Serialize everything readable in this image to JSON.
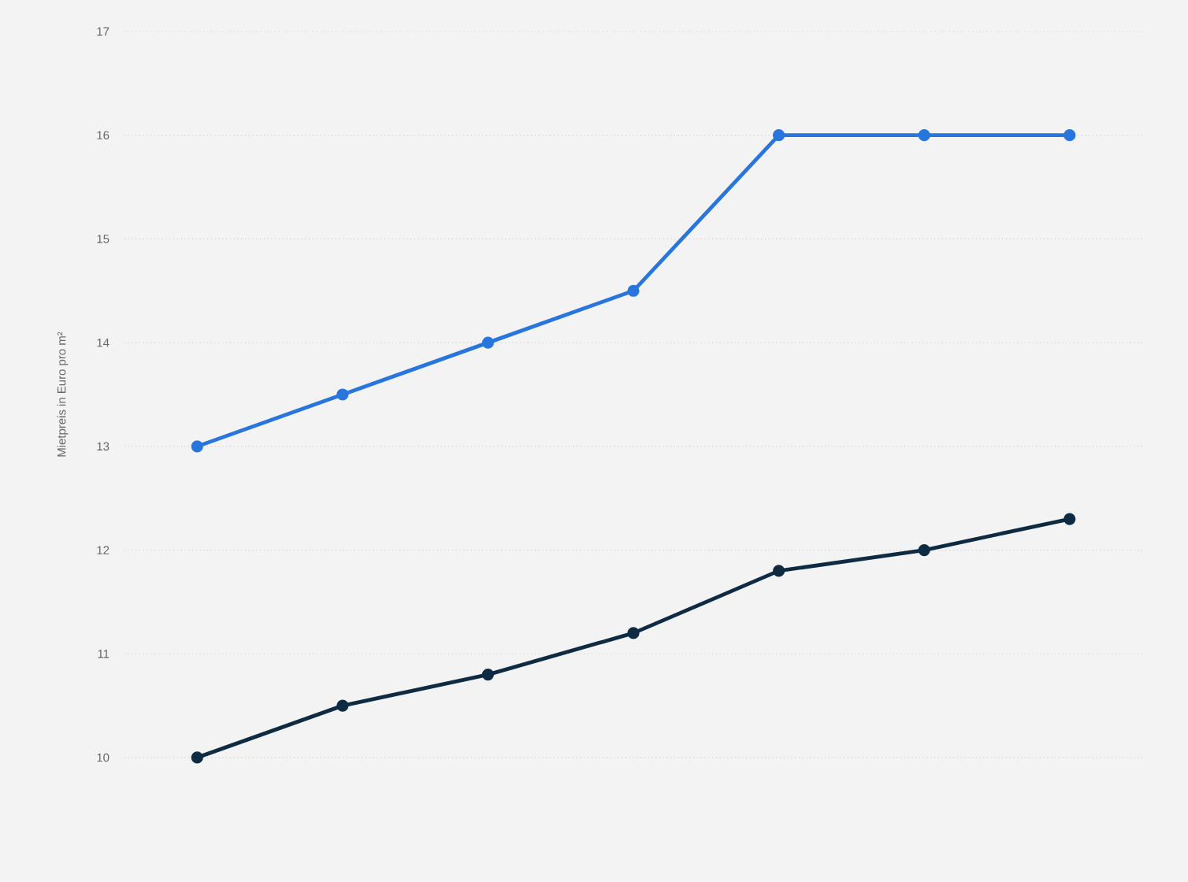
{
  "chart_data": {
    "type": "line",
    "ylabel": "Mietpreis in Euro pro m²",
    "categories": [
      null,
      null,
      null,
      null,
      null,
      null,
      null
    ],
    "series": [
      {
        "color": "#2876dd",
        "values": [
          13,
          13.5,
          14,
          14.5,
          16,
          16,
          16
        ]
      },
      {
        "color": "#0f2a43",
        "values": [
          10,
          10.5,
          10.8,
          11.2,
          11.8,
          12,
          12.3
        ]
      }
    ],
    "ylim": [
      10,
      17
    ],
    "yticks": [
      10,
      11,
      12,
      13,
      14,
      15,
      16,
      17
    ],
    "grid": "y",
    "marker": "circle",
    "line_style": "solid",
    "tick_labels": "y"
  }
}
